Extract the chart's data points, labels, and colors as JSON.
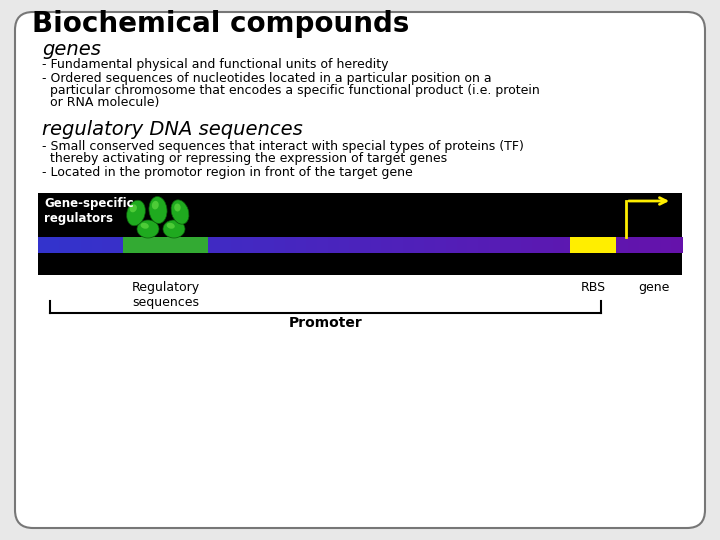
{
  "title": "Biochemical compounds",
  "bg_color": "#e8e8e8",
  "card_color": "#ffffff",
  "section1_heading": "genes",
  "section1_bullet1": "- Fundamental physical and functional units of heredity",
  "section1_bullet2a": "- Ordered sequences of nucleotides located in a particular position on a",
  "section1_bullet2b": "  particular chromosome that encodes a specific functional product (i.e. protein",
  "section1_bullet2c": "  or RNA molecule)",
  "section2_heading": "regulatory DNA sequences",
  "section2_bullet1a": "- Small conserved sequences that interact with special types of proteins (TF)",
  "section2_bullet1b": "  thereby activating or repressing the expression of target genes",
  "section2_bullet2": "- Located in the promotor region in front of the target gene",
  "diagram_label_left": "Gene-specific\nregulators",
  "diagram_label_reg": "Regulatory\nsequences",
  "diagram_label_rbs": "RBS",
  "diagram_label_gene": "gene",
  "diagram_label_promoter": "Promoter",
  "rbs_color": "#ffee00",
  "arrow_color": "#ffee00",
  "diagram_bg": "#000000",
  "dna_color": "#5544cc",
  "green_reg_color": "#33aa33"
}
